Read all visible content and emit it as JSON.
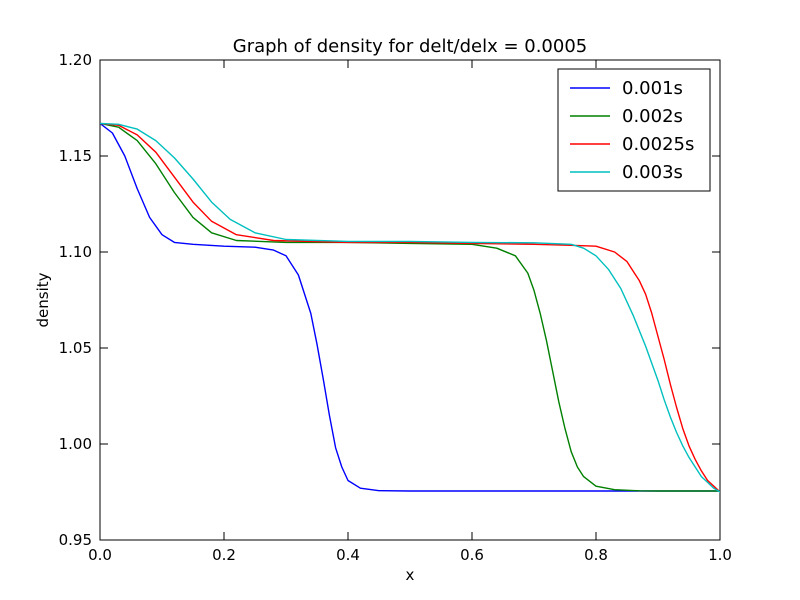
{
  "chart_data": {
    "type": "line",
    "title": "Graph of density for delt/delx = 0.0005",
    "xlabel": "x",
    "ylabel": "density",
    "xlim": [
      0.0,
      1.0
    ],
    "ylim": [
      0.95,
      1.2
    ],
    "xticks": [
      "0.0",
      "0.2",
      "0.4",
      "0.6",
      "0.8",
      "1.0"
    ],
    "yticks": [
      "0.95",
      "1.00",
      "1.05",
      "1.10",
      "1.15",
      "1.20"
    ],
    "grid": false,
    "legend_position": "top-right",
    "series": [
      {
        "name": "0.001s",
        "color": "#0000ff",
        "points": [
          [
            0.0,
            1.167
          ],
          [
            0.02,
            1.162
          ],
          [
            0.04,
            1.15
          ],
          [
            0.06,
            1.133
          ],
          [
            0.08,
            1.118
          ],
          [
            0.1,
            1.109
          ],
          [
            0.12,
            1.105
          ],
          [
            0.15,
            1.104
          ],
          [
            0.2,
            1.103
          ],
          [
            0.25,
            1.1025
          ],
          [
            0.28,
            1.101
          ],
          [
            0.3,
            1.098
          ],
          [
            0.32,
            1.088
          ],
          [
            0.34,
            1.068
          ],
          [
            0.35,
            1.052
          ],
          [
            0.36,
            1.034
          ],
          [
            0.37,
            1.015
          ],
          [
            0.38,
            0.998
          ],
          [
            0.39,
            0.988
          ],
          [
            0.4,
            0.981
          ],
          [
            0.42,
            0.977
          ],
          [
            0.45,
            0.9757
          ],
          [
            0.5,
            0.9755
          ],
          [
            0.6,
            0.9755
          ],
          [
            0.7,
            0.9755
          ],
          [
            0.8,
            0.9755
          ],
          [
            0.9,
            0.9755
          ],
          [
            1.0,
            0.9755
          ]
        ]
      },
      {
        "name": "0.002s",
        "color": "#008000",
        "points": [
          [
            0.0,
            1.167
          ],
          [
            0.03,
            1.165
          ],
          [
            0.06,
            1.158
          ],
          [
            0.09,
            1.146
          ],
          [
            0.12,
            1.131
          ],
          [
            0.15,
            1.118
          ],
          [
            0.18,
            1.11
          ],
          [
            0.22,
            1.106
          ],
          [
            0.3,
            1.105
          ],
          [
            0.4,
            1.105
          ],
          [
            0.5,
            1.1045
          ],
          [
            0.6,
            1.104
          ],
          [
            0.64,
            1.102
          ],
          [
            0.67,
            1.098
          ],
          [
            0.69,
            1.089
          ],
          [
            0.7,
            1.08
          ],
          [
            0.71,
            1.068
          ],
          [
            0.72,
            1.054
          ],
          [
            0.73,
            1.038
          ],
          [
            0.74,
            1.022
          ],
          [
            0.75,
            1.008
          ],
          [
            0.76,
            0.996
          ],
          [
            0.77,
            0.988
          ],
          [
            0.78,
            0.983
          ],
          [
            0.8,
            0.978
          ],
          [
            0.83,
            0.9762
          ],
          [
            0.87,
            0.9756
          ],
          [
            0.9,
            0.9755
          ],
          [
            1.0,
            0.9755
          ]
        ]
      },
      {
        "name": "0.0025s",
        "color": "#ff0000",
        "points": [
          [
            0.0,
            1.167
          ],
          [
            0.03,
            1.166
          ],
          [
            0.06,
            1.161
          ],
          [
            0.09,
            1.152
          ],
          [
            0.12,
            1.139
          ],
          [
            0.15,
            1.126
          ],
          [
            0.18,
            1.116
          ],
          [
            0.22,
            1.109
          ],
          [
            0.28,
            1.106
          ],
          [
            0.4,
            1.105
          ],
          [
            0.5,
            1.105
          ],
          [
            0.6,
            1.1045
          ],
          [
            0.7,
            1.104
          ],
          [
            0.76,
            1.1035
          ],
          [
            0.8,
            1.103
          ],
          [
            0.83,
            1.1
          ],
          [
            0.85,
            1.095
          ],
          [
            0.87,
            1.085
          ],
          [
            0.88,
            1.078
          ],
          [
            0.89,
            1.068
          ],
          [
            0.9,
            1.056
          ],
          [
            0.91,
            1.044
          ],
          [
            0.92,
            1.031
          ],
          [
            0.93,
            1.019
          ],
          [
            0.94,
            1.008
          ],
          [
            0.95,
            0.999
          ],
          [
            0.96,
            0.992
          ],
          [
            0.97,
            0.986
          ],
          [
            0.98,
            0.981
          ],
          [
            0.99,
            0.978
          ],
          [
            1.0,
            0.975
          ]
        ]
      },
      {
        "name": "0.003s",
        "color": "#00bfbf",
        "points": [
          [
            0.0,
            1.167
          ],
          [
            0.03,
            1.1665
          ],
          [
            0.06,
            1.164
          ],
          [
            0.09,
            1.158
          ],
          [
            0.12,
            1.149
          ],
          [
            0.15,
            1.138
          ],
          [
            0.18,
            1.126
          ],
          [
            0.21,
            1.117
          ],
          [
            0.25,
            1.11
          ],
          [
            0.3,
            1.1065
          ],
          [
            0.4,
            1.1055
          ],
          [
            0.5,
            1.1055
          ],
          [
            0.6,
            1.105
          ],
          [
            0.7,
            1.1048
          ],
          [
            0.76,
            1.104
          ],
          [
            0.78,
            1.102
          ],
          [
            0.8,
            1.098
          ],
          [
            0.82,
            1.091
          ],
          [
            0.84,
            1.081
          ],
          [
            0.86,
            1.067
          ],
          [
            0.88,
            1.051
          ],
          [
            0.89,
            1.042
          ],
          [
            0.9,
            1.033
          ],
          [
            0.91,
            1.023
          ],
          [
            0.92,
            1.014
          ],
          [
            0.93,
            1.006
          ],
          [
            0.94,
            0.999
          ],
          [
            0.95,
            0.993
          ],
          [
            0.96,
            0.988
          ],
          [
            0.97,
            0.983
          ],
          [
            0.98,
            0.98
          ],
          [
            0.99,
            0.977
          ],
          [
            1.0,
            0.975
          ]
        ]
      }
    ]
  }
}
